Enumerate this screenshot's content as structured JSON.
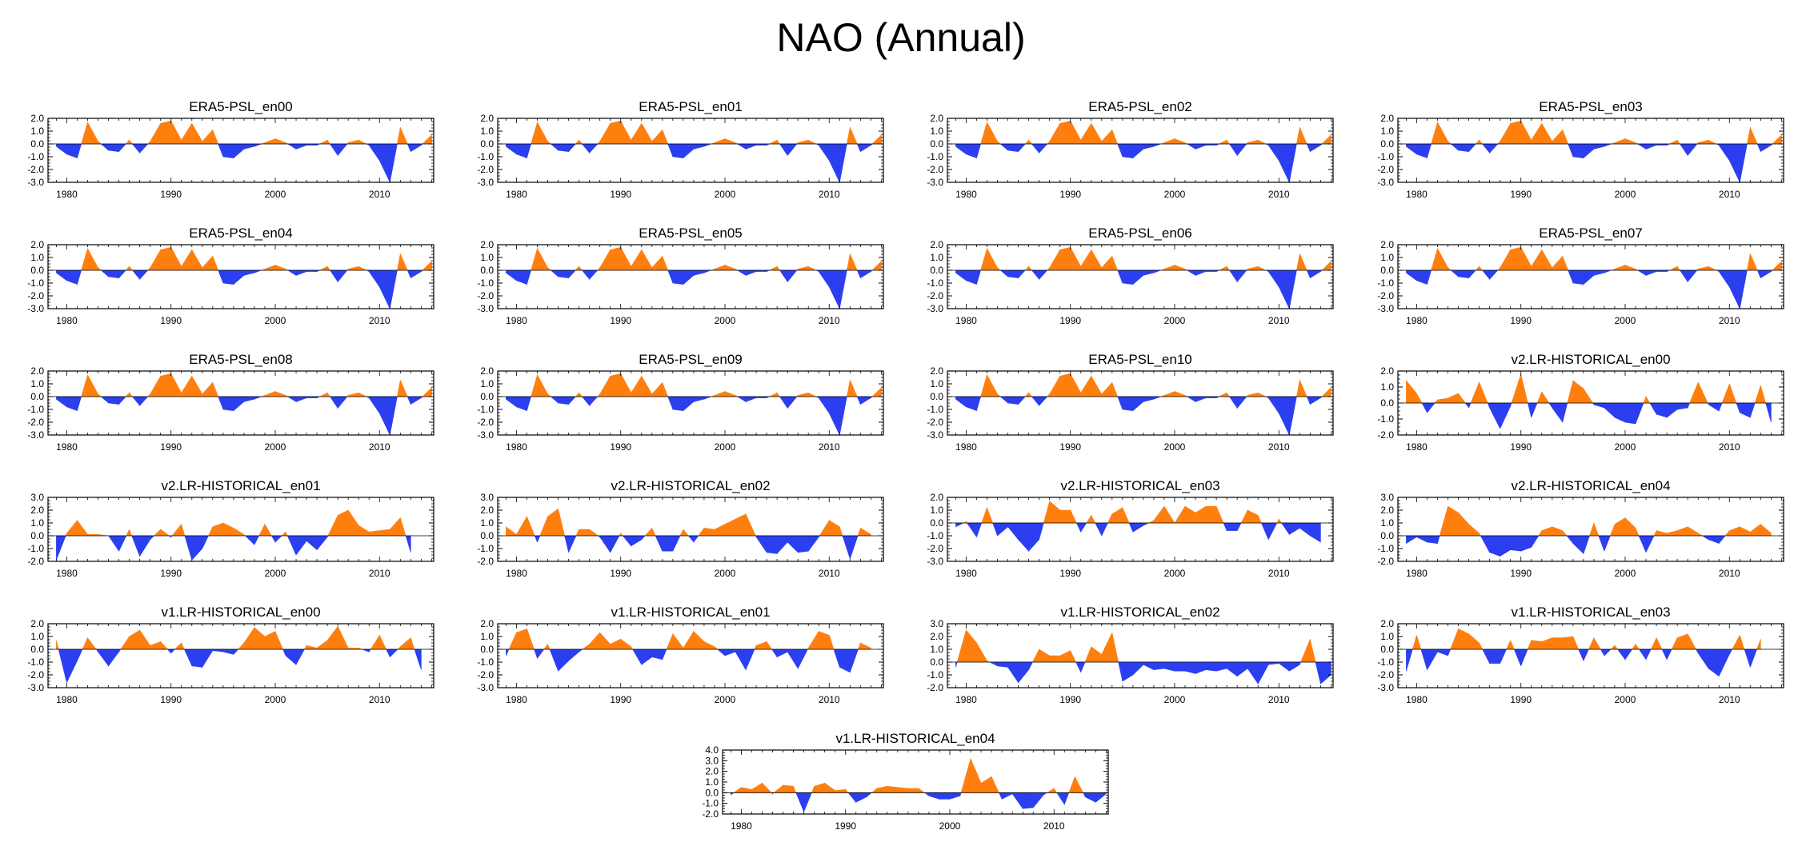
{
  "title": "NAO (Annual)",
  "colors": {
    "positive": "#ff7f0e",
    "negative": "#2b3ff0",
    "axis": "#000000"
  },
  "x_tick_labels": [
    "1980",
    "1990",
    "2000",
    "2010"
  ],
  "x_ticks": [
    1980,
    1990,
    2000,
    2010
  ],
  "chart_data": [
    {
      "type": "area",
      "title": "ERA5-PSL_en00",
      "x_start": 1979,
      "ylim": [
        -3,
        2
      ],
      "yticks": [
        "2.0",
        "1.0",
        "0.0",
        "-1.0",
        "-2.0",
        "-3.0"
      ],
      "values": [
        -0.2,
        -0.8,
        -1.1,
        1.7,
        0.2,
        -0.5,
        -0.6,
        0.3,
        -0.7,
        0.2,
        1.6,
        1.8,
        0.3,
        1.6,
        0.2,
        1.1,
        -1.0,
        -1.1,
        -0.4,
        -0.2,
        0.1,
        0.4,
        0.1,
        -0.4,
        -0.1,
        -0.1,
        0.3,
        -0.9,
        0.1,
        0.3,
        -0.1,
        -1.3,
        -3.0,
        1.3,
        -0.6,
        -0.1,
        0.7
      ]
    },
    {
      "type": "area",
      "title": "ERA5-PSL_en01",
      "x_start": 1979,
      "ylim": [
        -3,
        2
      ],
      "yticks": [
        "2.0",
        "1.0",
        "0.0",
        "-1.0",
        "-2.0",
        "-3.0"
      ],
      "values": [
        -0.2,
        -0.8,
        -1.1,
        1.7,
        0.2,
        -0.5,
        -0.6,
        0.3,
        -0.7,
        0.2,
        1.6,
        1.8,
        0.3,
        1.6,
        0.2,
        1.1,
        -1.0,
        -1.1,
        -0.4,
        -0.2,
        0.1,
        0.4,
        0.1,
        -0.4,
        -0.1,
        -0.1,
        0.3,
        -0.9,
        0.1,
        0.3,
        -0.1,
        -1.3,
        -3.0,
        1.3,
        -0.6,
        -0.1,
        0.7
      ]
    },
    {
      "type": "area",
      "title": "ERA5-PSL_en02",
      "x_start": 1979,
      "ylim": [
        -3,
        2
      ],
      "yticks": [
        "2.0",
        "1.0",
        "0.0",
        "-1.0",
        "-2.0",
        "-3.0"
      ],
      "values": [
        -0.2,
        -0.8,
        -1.1,
        1.7,
        0.2,
        -0.5,
        -0.6,
        0.3,
        -0.7,
        0.2,
        1.6,
        1.8,
        0.3,
        1.6,
        0.2,
        1.1,
        -1.0,
        -1.1,
        -0.4,
        -0.2,
        0.1,
        0.4,
        0.1,
        -0.4,
        -0.1,
        -0.1,
        0.3,
        -0.9,
        0.1,
        0.3,
        -0.1,
        -1.3,
        -3.0,
        1.3,
        -0.6,
        -0.1,
        0.7
      ]
    },
    {
      "type": "area",
      "title": "ERA5-PSL_en03",
      "x_start": 1979,
      "ylim": [
        -3,
        2
      ],
      "yticks": [
        "2.0",
        "1.0",
        "0.0",
        "-1.0",
        "-2.0",
        "-3.0"
      ],
      "values": [
        -0.2,
        -0.8,
        -1.1,
        1.7,
        0.2,
        -0.5,
        -0.6,
        0.3,
        -0.7,
        0.2,
        1.6,
        1.8,
        0.3,
        1.6,
        0.2,
        1.1,
        -1.0,
        -1.1,
        -0.4,
        -0.2,
        0.1,
        0.4,
        0.1,
        -0.4,
        -0.1,
        -0.1,
        0.3,
        -0.9,
        0.1,
        0.3,
        -0.1,
        -1.3,
        -3.0,
        1.3,
        -0.6,
        -0.1,
        0.7
      ]
    },
    {
      "type": "area",
      "title": "ERA5-PSL_en04",
      "x_start": 1979,
      "ylim": [
        -3,
        2
      ],
      "yticks": [
        "2.0",
        "1.0",
        "0.0",
        "-1.0",
        "-2.0",
        "-3.0"
      ],
      "values": [
        -0.2,
        -0.8,
        -1.1,
        1.7,
        0.2,
        -0.5,
        -0.6,
        0.3,
        -0.7,
        0.2,
        1.6,
        1.8,
        0.3,
        1.6,
        0.2,
        1.1,
        -1.0,
        -1.1,
        -0.4,
        -0.2,
        0.1,
        0.4,
        0.1,
        -0.4,
        -0.1,
        -0.1,
        0.3,
        -0.9,
        0.1,
        0.3,
        -0.1,
        -1.3,
        -3.0,
        1.3,
        -0.6,
        -0.1,
        0.7
      ]
    },
    {
      "type": "area",
      "title": "ERA5-PSL_en05",
      "x_start": 1979,
      "ylim": [
        -3,
        2
      ],
      "yticks": [
        "2.0",
        "1.0",
        "0.0",
        "-1.0",
        "-2.0",
        "-3.0"
      ],
      "values": [
        -0.2,
        -0.8,
        -1.1,
        1.7,
        0.2,
        -0.5,
        -0.6,
        0.3,
        -0.7,
        0.2,
        1.6,
        1.8,
        0.3,
        1.6,
        0.2,
        1.1,
        -1.0,
        -1.1,
        -0.4,
        -0.2,
        0.1,
        0.4,
        0.1,
        -0.4,
        -0.1,
        -0.1,
        0.3,
        -0.9,
        0.1,
        0.3,
        -0.1,
        -1.3,
        -3.0,
        1.3,
        -0.6,
        -0.1,
        0.7
      ]
    },
    {
      "type": "area",
      "title": "ERA5-PSL_en06",
      "x_start": 1979,
      "ylim": [
        -3,
        2
      ],
      "yticks": [
        "2.0",
        "1.0",
        "0.0",
        "-1.0",
        "-2.0",
        "-3.0"
      ],
      "values": [
        -0.2,
        -0.8,
        -1.1,
        1.7,
        0.2,
        -0.5,
        -0.6,
        0.3,
        -0.7,
        0.2,
        1.6,
        1.8,
        0.3,
        1.6,
        0.2,
        1.1,
        -1.0,
        -1.1,
        -0.4,
        -0.2,
        0.1,
        0.4,
        0.1,
        -0.4,
        -0.1,
        -0.1,
        0.3,
        -0.9,
        0.1,
        0.3,
        -0.1,
        -1.3,
        -3.0,
        1.3,
        -0.6,
        -0.1,
        0.7
      ]
    },
    {
      "type": "area",
      "title": "ERA5-PSL_en07",
      "x_start": 1979,
      "ylim": [
        -3,
        2
      ],
      "yticks": [
        "2.0",
        "1.0",
        "0.0",
        "-1.0",
        "-2.0",
        "-3.0"
      ],
      "values": [
        -0.2,
        -0.8,
        -1.1,
        1.7,
        0.2,
        -0.5,
        -0.6,
        0.3,
        -0.7,
        0.2,
        1.6,
        1.8,
        0.3,
        1.6,
        0.2,
        1.1,
        -1.0,
        -1.1,
        -0.4,
        -0.2,
        0.1,
        0.4,
        0.1,
        -0.4,
        -0.1,
        -0.1,
        0.3,
        -0.9,
        0.1,
        0.3,
        -0.1,
        -1.3,
        -3.0,
        1.3,
        -0.6,
        -0.1,
        0.7
      ]
    },
    {
      "type": "area",
      "title": "ERA5-PSL_en08",
      "x_start": 1979,
      "ylim": [
        -3,
        2
      ],
      "yticks": [
        "2.0",
        "1.0",
        "0.0",
        "-1.0",
        "-2.0",
        "-3.0"
      ],
      "values": [
        -0.2,
        -0.8,
        -1.1,
        1.7,
        0.2,
        -0.5,
        -0.6,
        0.3,
        -0.7,
        0.2,
        1.6,
        1.8,
        0.3,
        1.6,
        0.2,
        1.1,
        -1.0,
        -1.1,
        -0.4,
        -0.2,
        0.1,
        0.4,
        0.1,
        -0.4,
        -0.1,
        -0.1,
        0.3,
        -0.9,
        0.1,
        0.3,
        -0.1,
        -1.3,
        -3.0,
        1.3,
        -0.6,
        -0.1,
        0.7
      ]
    },
    {
      "type": "area",
      "title": "ERA5-PSL_en09",
      "x_start": 1979,
      "ylim": [
        -3,
        2
      ],
      "yticks": [
        "2.0",
        "1.0",
        "0.0",
        "-1.0",
        "-2.0",
        "-3.0"
      ],
      "values": [
        -0.2,
        -0.8,
        -1.1,
        1.7,
        0.2,
        -0.5,
        -0.6,
        0.3,
        -0.7,
        0.2,
        1.6,
        1.8,
        0.3,
        1.6,
        0.2,
        1.1,
        -1.0,
        -1.1,
        -0.4,
        -0.2,
        0.1,
        0.4,
        0.1,
        -0.4,
        -0.1,
        -0.1,
        0.3,
        -0.9,
        0.1,
        0.3,
        -0.1,
        -1.3,
        -3.0,
        1.3,
        -0.6,
        -0.1,
        0.7
      ]
    },
    {
      "type": "area",
      "title": "ERA5-PSL_en10",
      "x_start": 1979,
      "ylim": [
        -3,
        2
      ],
      "yticks": [
        "2.0",
        "1.0",
        "0.0",
        "-1.0",
        "-2.0",
        "-3.0"
      ],
      "values": [
        -0.2,
        -0.8,
        -1.1,
        1.7,
        0.2,
        -0.5,
        -0.6,
        0.3,
        -0.7,
        0.2,
        1.6,
        1.8,
        0.3,
        1.6,
        0.2,
        1.1,
        -1.0,
        -1.1,
        -0.4,
        -0.2,
        0.1,
        0.4,
        0.1,
        -0.4,
        -0.1,
        -0.1,
        0.3,
        -0.9,
        0.1,
        0.3,
        -0.1,
        -1.3,
        -3.0,
        1.3,
        -0.6,
        -0.1,
        0.7
      ]
    },
    {
      "type": "area",
      "title": "v2.LR-HISTORICAL_en00",
      "x_start": 1979,
      "ylim": [
        -2,
        2
      ],
      "yticks": [
        "2.0",
        "1.0",
        "0.0",
        "-1.0",
        "-2.0"
      ],
      "values": [
        1.4,
        0.6,
        -0.6,
        0.2,
        0.3,
        0.6,
        -0.3,
        1.3,
        -0.3,
        -1.6,
        -0.2,
        1.8,
        -0.9,
        0.7,
        -0.3,
        -1.2,
        1.4,
        0.9,
        -0.1,
        -0.3,
        -0.9,
        -1.2,
        -1.3,
        0.4,
        -0.7,
        -0.9,
        -0.4,
        -0.3,
        1.3,
        -0.1,
        -0.5,
        1.2,
        -0.6,
        -0.9,
        1.1,
        -1.2
      ]
    },
    {
      "type": "area",
      "title": "v2.LR-HISTORICAL_en01",
      "x_start": 1979,
      "ylim": [
        -2,
        3
      ],
      "yticks": [
        "3.0",
        "2.0",
        "1.0",
        "0.0",
        "-1.0",
        "-2.0"
      ],
      "values": [
        -1.9,
        0.2,
        1.2,
        0.1,
        0.1,
        0.0,
        -1.2,
        0.5,
        -1.6,
        -0.3,
        0.5,
        -0.1,
        0.9,
        -1.9,
        -1.0,
        0.7,
        1.0,
        0.6,
        0.1,
        -0.7,
        0.9,
        -0.5,
        0.3,
        -1.5,
        -0.4,
        -1.1,
        -0.1,
        1.6,
        2.0,
        0.8,
        0.3,
        0.4,
        0.5,
        1.4,
        -1.3
      ]
    },
    {
      "type": "area",
      "title": "v2.LR-HISTORICAL_en02",
      "x_start": 1979,
      "ylim": [
        -2,
        3
      ],
      "yticks": [
        "3.0",
        "2.0",
        "1.0",
        "0.0",
        "-1.0",
        "-2.0"
      ],
      "values": [
        0.7,
        0.1,
        1.5,
        -0.5,
        1.5,
        2.1,
        -1.3,
        0.5,
        0.5,
        -0.1,
        -1.3,
        0.2,
        -0.8,
        -0.3,
        0.6,
        -1.2,
        -1.2,
        0.5,
        -0.5,
        0.6,
        0.5,
        0.9,
        1.3,
        1.7,
        -0.1,
        -1.3,
        -1.4,
        -0.5,
        -1.3,
        -1.2,
        -0.1,
        1.2,
        0.7,
        -1.8,
        0.6,
        0.1
      ]
    },
    {
      "type": "area",
      "title": "v2.LR-HISTORICAL_en03",
      "x_start": 1979,
      "ylim": [
        -3,
        2
      ],
      "yticks": [
        "2.0",
        "1.0",
        "0.0",
        "-1.0",
        "-2.0",
        "-3.0"
      ],
      "values": [
        -0.3,
        0.1,
        -1.1,
        1.2,
        -1.0,
        -0.3,
        -1.3,
        -2.2,
        -1.3,
        1.7,
        1.0,
        1.0,
        -0.7,
        0.6,
        -1.0,
        0.7,
        1.2,
        -0.7,
        -0.2,
        0.2,
        1.3,
        0.0,
        1.3,
        0.8,
        1.3,
        1.3,
        -0.6,
        -0.6,
        1.0,
        0.6,
        -1.3,
        0.3,
        -0.9,
        -0.4,
        -1.0,
        -1.5
      ]
    },
    {
      "type": "area",
      "title": "v2.LR-HISTORICAL_en04",
      "x_start": 1979,
      "ylim": [
        -2,
        3
      ],
      "yticks": [
        "3.0",
        "2.0",
        "1.0",
        "0.0",
        "-1.0",
        "-2.0"
      ],
      "values": [
        -0.6,
        -0.1,
        -0.5,
        -0.6,
        2.3,
        1.8,
        0.9,
        0.2,
        -1.3,
        -1.6,
        -1.1,
        -1.2,
        -0.9,
        0.4,
        0.7,
        0.4,
        -0.6,
        -1.4,
        1.0,
        -1.2,
        0.9,
        1.4,
        0.6,
        -1.3,
        0.4,
        0.2,
        0.4,
        0.7,
        0.2,
        -0.3,
        -0.6,
        0.4,
        0.7,
        0.3,
        0.9,
        0.2
      ]
    },
    {
      "type": "area",
      "title": "v1.LR-HISTORICAL_en00",
      "x_start": 1979,
      "ylim": [
        -3,
        2
      ],
      "yticks": [
        "2.0",
        "1.0",
        "0.0",
        "-1.0",
        "-2.0",
        "-3.0"
      ],
      "values": [
        0.7,
        -2.6,
        -0.9,
        0.9,
        -0.2,
        -1.3,
        -0.2,
        1.0,
        1.5,
        0.3,
        0.6,
        -0.3,
        0.5,
        -1.3,
        -1.4,
        -0.1,
        -0.2,
        -0.4,
        0.5,
        1.7,
        1.0,
        1.4,
        -0.5,
        -1.2,
        0.3,
        0.1,
        0.7,
        1.8,
        0.1,
        0.1,
        -0.2,
        1.1,
        -0.6,
        0.2,
        0.9,
        -1.6
      ]
    },
    {
      "type": "area",
      "title": "v1.LR-HISTORICAL_en01",
      "x_start": 1979,
      "ylim": [
        -3,
        2
      ],
      "yticks": [
        "2.0",
        "1.0",
        "0.0",
        "-1.0",
        "-2.0",
        "-3.0"
      ],
      "values": [
        -0.5,
        1.3,
        1.6,
        -0.7,
        0.4,
        -1.7,
        -0.9,
        -0.2,
        0.4,
        1.3,
        0.4,
        0.8,
        0.2,
        -1.2,
        -0.6,
        -0.8,
        1.2,
        0.1,
        1.4,
        0.6,
        0.2,
        -0.5,
        -0.2,
        -1.6,
        0.3,
        0.6,
        -0.6,
        -0.2,
        -1.5,
        0.1,
        1.4,
        1.1,
        -1.4,
        -1.8,
        0.5,
        0.1
      ]
    },
    {
      "type": "area",
      "title": "v1.LR-HISTORICAL_en02",
      "x_start": 1979,
      "ylim": [
        -2,
        3
      ],
      "yticks": [
        "3.0",
        "2.0",
        "1.0",
        "0.0",
        "-1.0",
        "-2.0"
      ],
      "values": [
        -0.4,
        2.5,
        1.5,
        0.1,
        -0.3,
        -0.4,
        -1.6,
        -0.6,
        1.0,
        0.5,
        0.5,
        0.9,
        -0.8,
        1.2,
        0.6,
        2.3,
        -1.5,
        -1.0,
        -0.2,
        -0.6,
        -0.5,
        -0.7,
        -0.7,
        -0.9,
        -0.6,
        -0.7,
        -0.5,
        -1.1,
        -0.5,
        -1.7,
        -0.2,
        -0.1,
        -0.7,
        -0.2,
        1.8,
        -1.7,
        -1.0
      ]
    },
    {
      "type": "area",
      "title": "v1.LR-HISTORICAL_en03",
      "x_start": 1979,
      "ylim": [
        -3,
        2
      ],
      "yticks": [
        "2.0",
        "1.0",
        "0.0",
        "-1.0",
        "-2.0",
        "-3.0"
      ],
      "values": [
        -1.7,
        1.1,
        -1.6,
        -0.2,
        -0.5,
        1.6,
        1.2,
        0.5,
        -1.1,
        -1.1,
        0.7,
        -1.3,
        0.7,
        0.6,
        0.9,
        0.9,
        1.0,
        -0.9,
        0.9,
        -0.5,
        0.3,
        -0.8,
        0.4,
        -0.8,
        0.9,
        -0.8,
        0.9,
        1.2,
        -0.3,
        -1.5,
        -2.1,
        -0.4,
        1.1,
        -1.4,
        0.8
      ]
    },
    {
      "type": "area",
      "title": "v1.LR-HISTORICAL_en04",
      "x_start": 1979,
      "ylim": [
        -2,
        4
      ],
      "yticks": [
        "4.0",
        "3.0",
        "2.0",
        "1.0",
        "0.0",
        "-1.0",
        "-2.0"
      ],
      "values": [
        -0.2,
        0.5,
        0.3,
        0.9,
        -0.1,
        0.7,
        0.6,
        -1.8,
        0.6,
        0.9,
        0.2,
        0.3,
        -0.9,
        -0.4,
        0.4,
        0.6,
        0.5,
        0.4,
        0.4,
        -0.3,
        -0.6,
        -0.6,
        -0.3,
        3.2,
        0.9,
        1.5,
        -0.6,
        -0.1,
        -1.5,
        -1.4,
        -0.2,
        0.4,
        -1.1,
        1.5,
        -0.4,
        -0.9,
        -0.1
      ]
    }
  ]
}
